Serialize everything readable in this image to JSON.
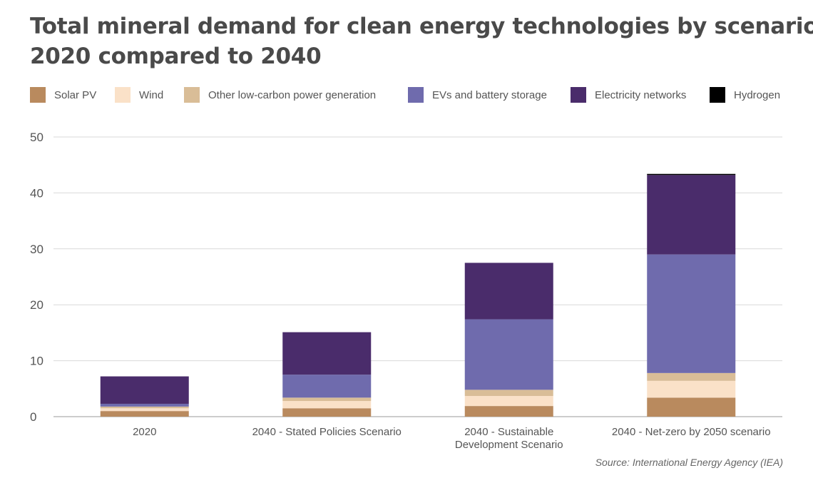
{
  "title_lines": [
    "Total mineral demand for clean energy technologies by scenario",
    "2020 compared to 2040"
  ],
  "source": "Source: International Energy Agency (IEA)",
  "chart_data": {
    "type": "bar",
    "stacked": true,
    "categories": [
      [
        "2020"
      ],
      [
        "2040 - Stated Policies Scenario"
      ],
      [
        "2040 - Sustainable",
        "Development Scenario"
      ],
      [
        "2040 - Net-zero by 2050 scenario"
      ]
    ],
    "series": [
      {
        "name": "Solar PV",
        "color": "#b98a5e",
        "values": [
          1.0,
          1.5,
          1.9,
          3.4
        ]
      },
      {
        "name": "Wind",
        "color": "#fae1c8",
        "values": [
          0.5,
          1.3,
          1.8,
          3.0
        ]
      },
      {
        "name": "Other low-carbon power generation",
        "color": "#d9bd97",
        "values": [
          0.3,
          0.6,
          1.1,
          1.4
        ]
      },
      {
        "name": "EVs and battery storage",
        "color": "#6f6bad",
        "values": [
          0.5,
          4.1,
          12.6,
          21.2
        ]
      },
      {
        "name": "Electricity networks",
        "color": "#4a2c6b",
        "values": [
          4.9,
          7.6,
          10.1,
          14.2
        ]
      },
      {
        "name": "Hydrogen",
        "color": "#000000",
        "values": [
          0.0,
          0.0,
          0.0,
          0.2
        ]
      }
    ],
    "yticks": [
      0,
      10,
      20,
      30,
      40,
      50
    ],
    "ylim": [
      0,
      50
    ],
    "grid": true,
    "legend_position": "top"
  }
}
